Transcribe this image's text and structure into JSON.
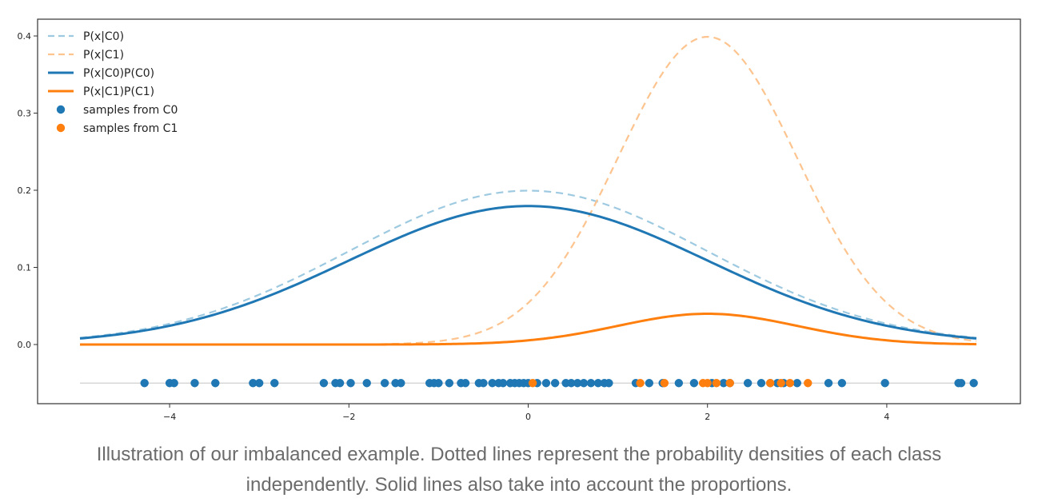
{
  "chart_data": {
    "type": "line",
    "xlim": [
      -5,
      5
    ],
    "ylim": [
      -0.075,
      0.415
    ],
    "x_ticks": [
      -4,
      -2,
      0,
      2,
      4
    ],
    "x_tick_labels": [
      "−4",
      "−2",
      "0",
      "2",
      "4"
    ],
    "y_ticks": [
      0.0,
      0.1,
      0.2,
      0.3,
      0.4
    ],
    "y_tick_labels": [
      "0.0",
      "0.1",
      "0.2",
      "0.3",
      "0.4"
    ],
    "legend_position": "top-left",
    "grid": false,
    "series": [
      {
        "name": "P(x|C0)",
        "kind": "density",
        "mean": 0,
        "std": 2,
        "weight": 1.0,
        "style": "dashed",
        "color": "#9ecae1"
      },
      {
        "name": "P(x|C1)",
        "kind": "density",
        "mean": 2,
        "std": 1,
        "weight": 1.0,
        "style": "dashed",
        "color": "#fdc48f"
      },
      {
        "name": "P(x|C0)P(C0)",
        "kind": "density",
        "mean": 0,
        "std": 2,
        "weight": 0.9,
        "style": "solid",
        "color": "#1f77b4"
      },
      {
        "name": "P(x|C1)P(C1)",
        "kind": "density",
        "mean": 2,
        "std": 1,
        "weight": 0.1,
        "style": "solid",
        "color": "#ff7f0e"
      }
    ],
    "samples": [
      {
        "name": "samples from C0",
        "color": "#1f77b4",
        "y": -0.05,
        "x": [
          -4.28,
          -4.0,
          -3.95,
          -3.72,
          -3.49,
          -3.07,
          -3.0,
          -2.83,
          -2.28,
          -2.15,
          -2.1,
          -1.98,
          -1.8,
          -1.6,
          -1.48,
          -1.42,
          -1.1,
          -1.05,
          -1.0,
          -0.88,
          -0.75,
          -0.7,
          -0.55,
          -0.5,
          -0.4,
          -0.33,
          -0.28,
          -0.2,
          -0.15,
          -0.1,
          -0.05,
          0.0,
          0.1,
          0.2,
          0.3,
          0.42,
          0.48,
          0.55,
          0.62,
          0.7,
          0.78,
          0.85,
          0.9,
          1.2,
          1.35,
          1.5,
          1.68,
          1.85,
          2.05,
          2.18,
          2.25,
          2.45,
          2.6,
          2.7,
          2.78,
          2.85,
          3.0,
          3.35,
          3.5,
          3.98,
          4.8,
          4.83,
          4.97
        ]
      },
      {
        "name": "samples from C1",
        "color": "#ff7f0e",
        "y": -0.05,
        "x": [
          0.05,
          1.25,
          1.52,
          1.95,
          2.0,
          2.1,
          2.25,
          2.7,
          2.82,
          2.92,
          3.12
        ]
      }
    ]
  },
  "caption": {
    "line1": "Illustration of our imbalanced example. Dotted lines represent the probability densities of each class",
    "line2": "independently. Solid lines also take into account the proportions."
  }
}
